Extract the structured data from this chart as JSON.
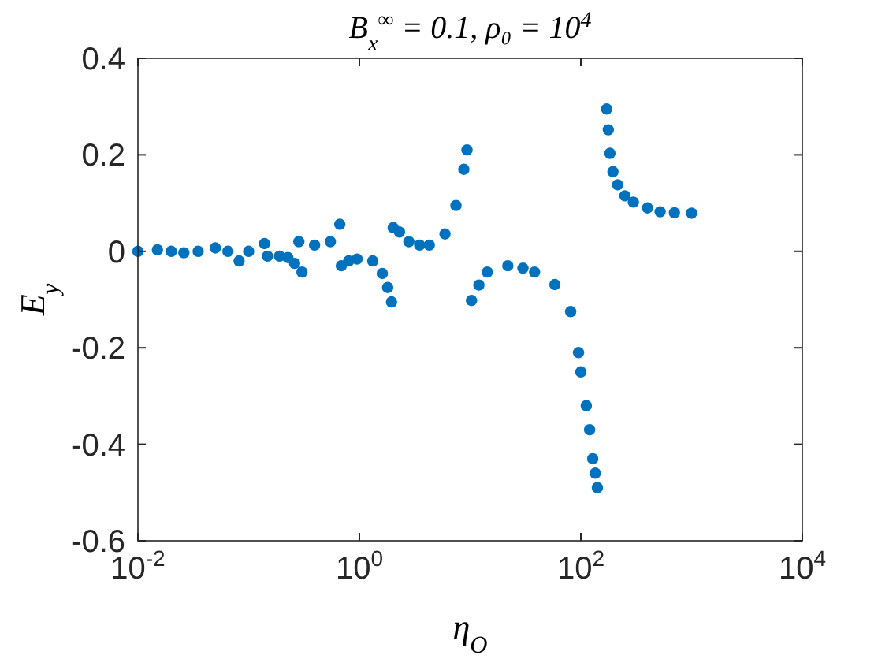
{
  "chart_data": {
    "type": "scatter",
    "title": "B$_{x}$$^{∞}$ = 0.1, ρ₀ = 10$^{4}$",
    "xlabel": "η$_{O}$",
    "ylabel": "E$_{y}$",
    "log": "x",
    "marker": "circle",
    "xlim": [
      0.01,
      10000
    ],
    "ylim": [
      -0.6,
      0.4
    ],
    "xticks": [
      {
        "value": 0.01,
        "label": "10$^{-2}$"
      },
      {
        "value": 1,
        "label": "10$^{0}$"
      },
      {
        "value": 100,
        "label": "10$^{2}$"
      },
      {
        "value": 10000,
        "label": "10$^{4}$"
      }
    ],
    "yticks": [
      -0.6,
      -0.4,
      -0.2,
      0,
      0.2,
      0.4
    ],
    "series": [
      {
        "color": "#0072bd",
        "x": [
          0.01,
          0.015,
          0.02,
          0.026,
          0.035,
          0.05,
          0.065,
          0.082,
          0.1,
          0.139,
          0.148,
          0.19,
          0.226,
          0.26,
          0.303,
          0.284,
          0.394,
          0.547,
          0.665,
          0.687,
          0.8,
          0.953,
          1.32,
          1.61,
          1.8,
          1.95,
          2.02,
          2.3,
          2.8,
          3.5,
          4.28,
          5.93,
          7.45,
          8.77,
          9.37,
          10.3,
          12,
          14.3,
          21.9,
          30,
          38.2,
          58.3,
          80.9,
          95.3,
          100,
          112,
          120,
          128,
          135,
          141,
          171,
          177,
          183,
          195,
          215,
          250,
          298,
          400,
          520,
          700,
          1000
        ],
        "values": [
          0,
          0.003,
          0,
          -0.003,
          0,
          0.007,
          0,
          -0.02,
          0,
          0.016,
          -0.01,
          -0.01,
          -0.013,
          -0.025,
          -0.043,
          0.02,
          0.013,
          0.02,
          0.056,
          -0.03,
          -0.02,
          -0.016,
          -0.02,
          -0.046,
          -0.075,
          -0.105,
          0.049,
          0.04,
          0.02,
          0.013,
          0.013,
          0.036,
          0.095,
          0.17,
          0.21,
          -0.102,
          -0.07,
          -0.043,
          -0.03,
          -0.035,
          -0.043,
          -0.069,
          -0.125,
          -0.21,
          -0.25,
          -0.32,
          -0.37,
          -0.43,
          -0.46,
          -0.49,
          0.295,
          0.252,
          0.203,
          0.165,
          0.138,
          0.115,
          0.102,
          0.09,
          0.082,
          0.08,
          0.079
        ]
      }
    ]
  }
}
